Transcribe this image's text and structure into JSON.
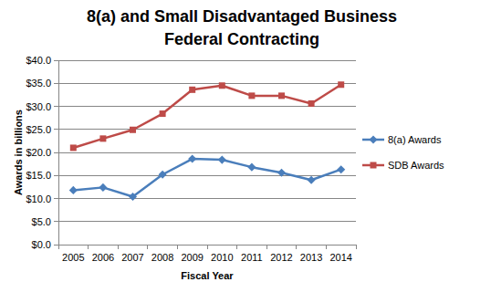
{
  "chart_data": {
    "type": "line",
    "title": "8(a) and Small Disadvantaged Business Federal Contracting",
    "x_label": "Fiscal Year",
    "y_label": "Awards in billions",
    "categories": [
      "2005",
      "2006",
      "2007",
      "2008",
      "2009",
      "2010",
      "2011",
      "2012",
      "2013",
      "2014"
    ],
    "series": [
      {
        "name": "8(a) Awards",
        "color": "#4a7ebb",
        "marker": "diamond",
        "values": [
          11.8,
          12.4,
          10.4,
          15.2,
          18.6,
          18.4,
          16.8,
          15.6,
          14.0,
          16.3
        ]
      },
      {
        "name": "SDB Awards",
        "color": "#be4b48",
        "marker": "square",
        "values": [
          21.0,
          23.0,
          24.9,
          28.4,
          33.6,
          34.5,
          32.3,
          32.3,
          30.6,
          34.7
        ]
      }
    ],
    "ylim": [
      0,
      40
    ],
    "yticks": [
      {
        "value": 0,
        "label": "$0.0"
      },
      {
        "value": 5,
        "label": "$5.0"
      },
      {
        "value": 10,
        "label": "$10.0"
      },
      {
        "value": 15,
        "label": "$15.0"
      },
      {
        "value": 20,
        "label": "$20.0"
      },
      {
        "value": 25,
        "label": "$25.0"
      },
      {
        "value": 30,
        "label": "$30.0"
      },
      {
        "value": 35,
        "label": "$35.0"
      },
      {
        "value": 40,
        "label": "$40.0"
      }
    ],
    "grid": true,
    "legend": "right"
  }
}
